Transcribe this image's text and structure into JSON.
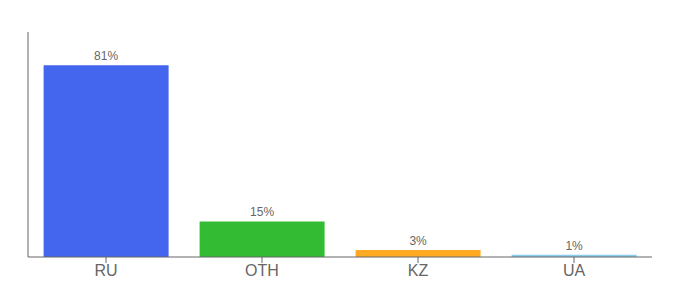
{
  "chart_data": {
    "type": "bar",
    "categories": [
      "RU",
      "OTH",
      "KZ",
      "UA"
    ],
    "values": [
      81,
      15,
      3,
      1
    ],
    "value_labels": [
      "81%",
      "15%",
      "3%",
      "1%"
    ],
    "data_labels": true,
    "colors": [
      "#4466ee",
      "#33bb33",
      "#ffaa22",
      "#88ccee"
    ],
    "ylim": [
      0,
      95
    ],
    "tick_labels": "x"
  }
}
